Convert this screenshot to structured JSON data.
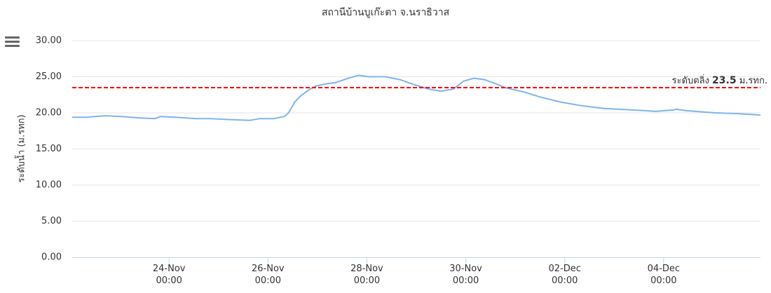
{
  "chart_data": {
    "type": "line",
    "title": "สถานีบ้านบูเก๊ะตา จ.นราธิวาส",
    "y_axis_label": "ระดับน้ำ (ม.รทก)",
    "color": "#7cb5ec",
    "x": [
      "22-Nov 01:00",
      "22-Nov 08:00",
      "22-Nov 17:00",
      "23-Nov 01:00",
      "23-Nov 10:00",
      "23-Nov 17:00",
      "23-Nov 20:00",
      "24-Nov 03:00",
      "24-Nov 13:00",
      "24-Nov 20:00",
      "25-Nov 03:00",
      "25-Nov 15:00",
      "25-Nov 20:00",
      "26-Nov 03:00",
      "26-Nov 08:00",
      "26-Nov 10:00",
      "26-Nov 13:00",
      "26-Nov 16:00",
      "26-Nov 20:00",
      "26-Nov 23:00",
      "27-Nov 04:00",
      "27-Nov 09:00",
      "27-Nov 15:00",
      "27-Nov 20:00",
      "28-Nov 01:00",
      "28-Nov 09:00",
      "28-Nov 16:00",
      "28-Nov 23:00",
      "29-Nov 06:00",
      "29-Nov 12:00",
      "29-Nov 18:00",
      "29-Nov 23:00",
      "30-Nov 04:00",
      "30-Nov 09:00",
      "30-Nov 14:00",
      "30-Nov 19:00",
      "01-Dec 04:00",
      "01-Dec 12:00",
      "01-Dec 22:00",
      "02-Dec 08:00",
      "02-Dec 19:00",
      "03-Dec 02:00",
      "03-Dec 15:00",
      "03-Dec 20:00",
      "04-Dec 05:00",
      "04-Dec 06:00",
      "04-Dec 11:00",
      "05-Dec 01:00",
      "05-Dec 11:00",
      "05-Dec 23:00"
    ],
    "values": [
      19.4,
      19.4,
      19.6,
      19.5,
      19.3,
      19.2,
      19.5,
      19.4,
      19.2,
      19.2,
      19.1,
      18.95,
      19.2,
      19.2,
      19.5,
      20.0,
      21.5,
      22.4,
      23.2,
      23.7,
      24.0,
      24.2,
      24.8,
      25.2,
      25.0,
      25.0,
      24.6,
      23.9,
      23.3,
      23.0,
      23.3,
      24.4,
      24.8,
      24.6,
      24.1,
      23.5,
      22.9,
      22.2,
      21.5,
      21.0,
      20.6,
      20.5,
      20.3,
      20.2,
      20.4,
      20.5,
      20.3,
      20.0,
      19.9,
      19.7
    ],
    "xlim": [
      "22-Nov 01:00",
      "05-Dec 23:00"
    ],
    "xticks": [
      "24-Nov 00:00",
      "26-Nov 00:00",
      "28-Nov 00:00",
      "30-Nov 00:00",
      "02-Dec 00:00",
      "04-Dec 00:00"
    ],
    "ylim": [
      0,
      30
    ],
    "yticks": [
      {
        "value": 0,
        "label": "0.00"
      },
      {
        "value": 5,
        "label": "5.00"
      },
      {
        "value": 10,
        "label": "10.00"
      },
      {
        "value": 15,
        "label": "15.00"
      },
      {
        "value": 20,
        "label": "20.00"
      },
      {
        "value": 25,
        "label": "25.00"
      },
      {
        "value": 30,
        "label": "30.00"
      }
    ],
    "grid": true,
    "plot_line": {
      "value": 23.5,
      "label": "ระดับตลิ่ง",
      "unit": "ม.รทก.",
      "color": "#ff0000"
    }
  }
}
